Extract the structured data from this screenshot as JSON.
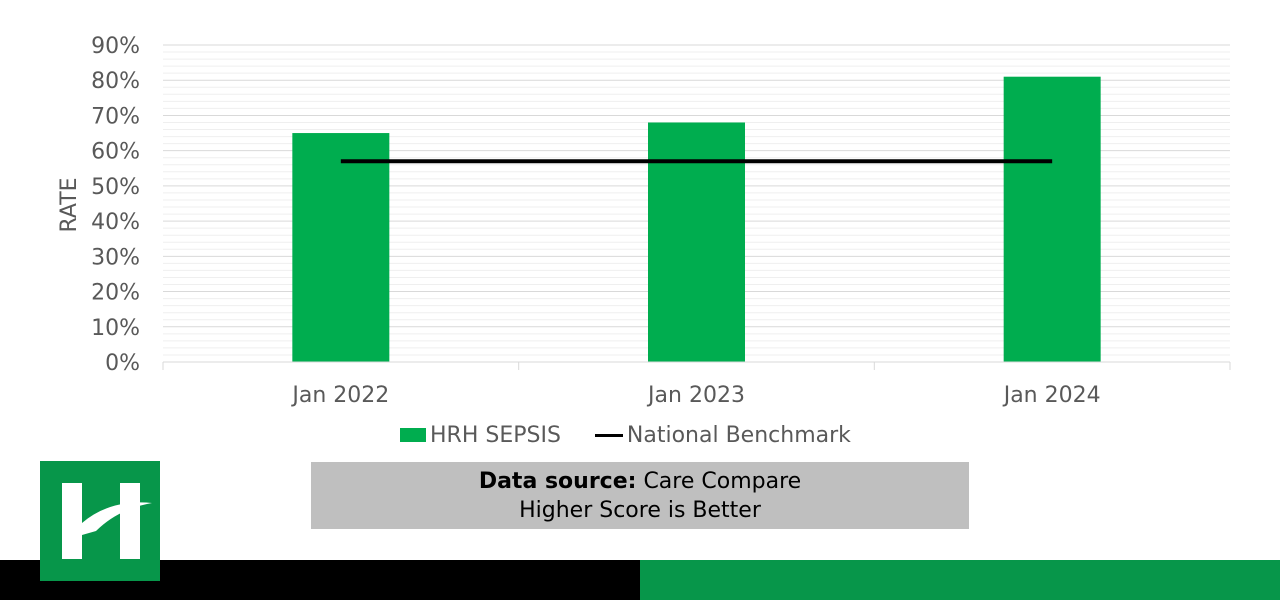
{
  "chart_data": {
    "type": "bar",
    "categories": [
      "Jan 2022",
      "Jan 2023",
      "Jan 2024"
    ],
    "series": [
      {
        "name": "HRH SEPSIS",
        "type": "bar",
        "values": [
          65,
          68,
          81
        ],
        "color": "#00ad4f"
      },
      {
        "name": "National Benchmark",
        "type": "line",
        "values": [
          57,
          57,
          57
        ],
        "color": "#000000"
      }
    ],
    "ylabel": "RATE",
    "ylim": [
      0,
      90
    ],
    "yticks": [
      "0%",
      "10%",
      "20%",
      "30%",
      "40%",
      "50%",
      "60%",
      "70%",
      "80%",
      "90%"
    ],
    "grid": true,
    "legend_position": "bottom"
  },
  "legend": {
    "bar_label": "HRH SEPSIS",
    "line_label": "National Benchmark"
  },
  "source": {
    "label": "Data source:",
    "value": "Care Compare",
    "note": "Higher Score is Better"
  },
  "colors": {
    "bar": "#00ad4f",
    "line": "#000000",
    "footer_dark": "#000000",
    "footer_green": "#07964a",
    "source_bg": "#bfbfbf"
  },
  "logo": {
    "icon": "hrh-logo-icon"
  }
}
